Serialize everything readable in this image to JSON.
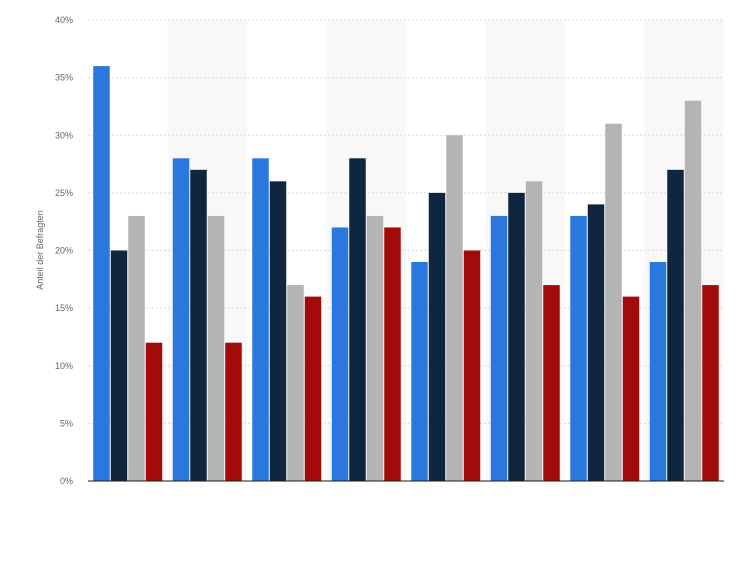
{
  "chart_data": {
    "type": "bar",
    "title": "",
    "xlabel": "",
    "ylabel": "Anteil der Befragten",
    "ylim": [
      0,
      40
    ],
    "yticks": [
      0,
      5,
      10,
      15,
      20,
      25,
      30,
      35,
      40
    ],
    "ytick_suffix": "%",
    "grid": true,
    "categories": [
      "",
      "",
      "",
      "",
      "",
      "",
      "",
      ""
    ],
    "series": [
      {
        "color": "#2a77dd",
        "values": [
          36,
          28,
          28,
          22,
          19,
          23,
          23,
          19
        ]
      },
      {
        "color": "#10263f",
        "values": [
          20,
          27,
          26,
          28,
          25,
          25,
          24,
          27
        ]
      },
      {
        "color": "#b4b4b4",
        "values": [
          23,
          23,
          17,
          23,
          30,
          26,
          31,
          33
        ]
      },
      {
        "color": "#a30b0b",
        "values": [
          12,
          12,
          16,
          22,
          20,
          17,
          16,
          17
        ]
      }
    ]
  }
}
